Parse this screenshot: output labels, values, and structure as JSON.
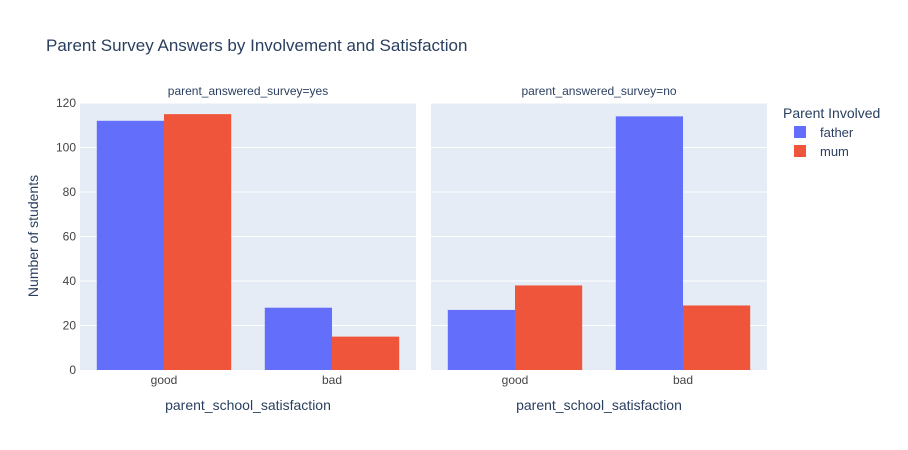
{
  "chart_data": {
    "type": "bar",
    "title": "Parent Survey Answers by Involvement and Satisfaction",
    "ylabel": "Number of students",
    "xlabel": "parent_school_satisfaction",
    "ylim": [
      0,
      120
    ],
    "yticks": [
      0,
      20,
      40,
      60,
      80,
      100,
      120
    ],
    "categories": [
      "good",
      "bad"
    ],
    "legend": {
      "title": "Parent Involved",
      "placement": "right",
      "entries": [
        "father",
        "mum"
      ]
    },
    "colors": {
      "father": "#636efa",
      "mum": "#ef553b",
      "plot_bg": "#e5ecf6",
      "grid": "#ffffff"
    },
    "grid": true,
    "panels": [
      {
        "label": "parent_answered_survey=yes",
        "series": [
          {
            "name": "father",
            "values": [
              112,
              28
            ]
          },
          {
            "name": "mum",
            "values": [
              115,
              15
            ]
          }
        ]
      },
      {
        "label": "parent_answered_survey=no",
        "series": [
          {
            "name": "father",
            "values": [
              27,
              114
            ]
          },
          {
            "name": "mum",
            "values": [
              38,
              29
            ]
          }
        ]
      }
    ]
  }
}
